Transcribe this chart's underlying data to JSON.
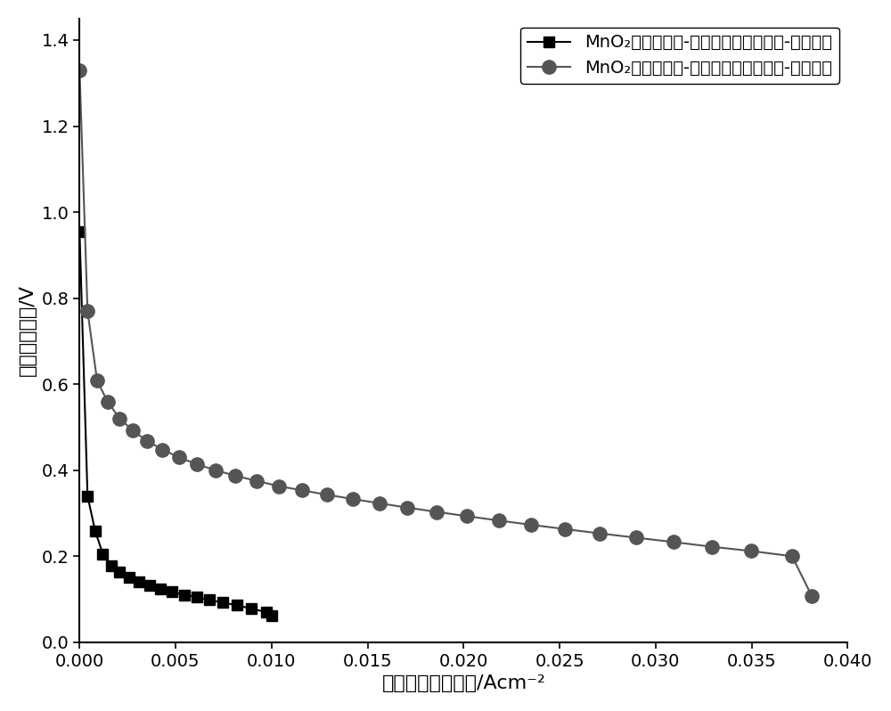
{
  "title": "",
  "xlabel": "电池放电电流密度/Acm⁻²",
  "ylabel": "电池放电电压/V",
  "xlim": [
    0,
    0.04
  ],
  "ylim": [
    0.0,
    1.45
  ],
  "yticks": [
    0.0,
    0.2,
    0.4,
    0.6,
    0.8,
    1.0,
    1.2,
    1.4
  ],
  "xticks": [
    0.0,
    0.005,
    0.01,
    0.015,
    0.02,
    0.025,
    0.03,
    0.035,
    0.04
  ],
  "iron_label": "MnO$_2$催化剂空气-铁电池单体放电电流-电压曲线",
  "al_label": "MnO$_2$催化剂空气-铝电池单体放电电流-电压曲线",
  "iron_color": "#000000",
  "al_color": "#555555",
  "iron_x": [
    5e-06,
    0.00042,
    0.00082,
    0.00122,
    0.00165,
    0.0021,
    0.00258,
    0.0031,
    0.00365,
    0.00422,
    0.00482,
    0.00545,
    0.0061,
    0.00678,
    0.00748,
    0.0082,
    0.00895,
    0.00972,
    0.01
  ],
  "iron_y": [
    0.955,
    0.34,
    0.258,
    0.205,
    0.178,
    0.163,
    0.15,
    0.14,
    0.132,
    0.124,
    0.117,
    0.11,
    0.105,
    0.098,
    0.092,
    0.086,
    0.078,
    0.07,
    0.062
  ],
  "al_x": [
    5e-06,
    0.00042,
    0.00092,
    0.00148,
    0.0021,
    0.00278,
    0.00352,
    0.00432,
    0.00518,
    0.0061,
    0.00708,
    0.00812,
    0.00922,
    0.01038,
    0.0116,
    0.01288,
    0.01422,
    0.01562,
    0.01708,
    0.0186,
    0.02018,
    0.02182,
    0.02352,
    0.02528,
    0.0271,
    0.02898,
    0.03092,
    0.03292,
    0.03498,
    0.0371,
    0.03812
  ],
  "al_y": [
    1.33,
    0.77,
    0.608,
    0.558,
    0.52,
    0.492,
    0.468,
    0.448,
    0.43,
    0.414,
    0.4,
    0.387,
    0.375,
    0.363,
    0.353,
    0.343,
    0.333,
    0.323,
    0.313,
    0.303,
    0.293,
    0.283,
    0.273,
    0.263,
    0.253,
    0.243,
    0.233,
    0.222,
    0.212,
    0.2,
    0.108
  ],
  "linewidth": 1.5,
  "markersize_square": 8,
  "markersize_circle": 11,
  "fontsize_label": 16,
  "fontsize_tick": 14,
  "fontsize_legend": 14
}
